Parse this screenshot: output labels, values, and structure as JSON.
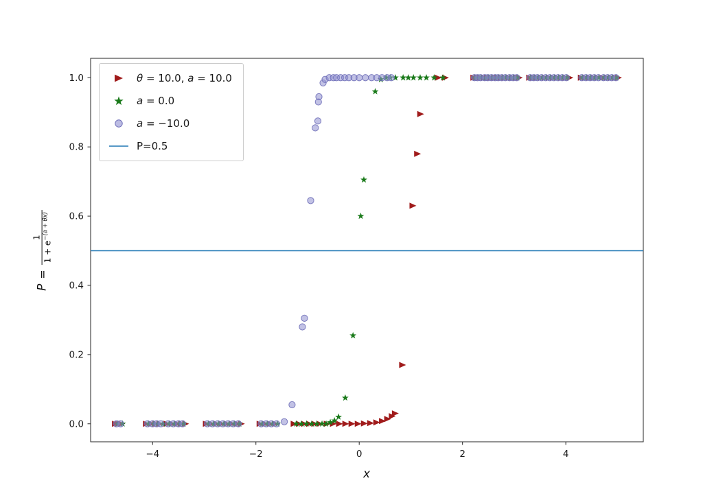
{
  "figure": {
    "background": "#ffffff",
    "xlabel": "x",
    "ylabel": {
      "var": "P",
      "eq": "=",
      "numerator": "1",
      "den_base": "1 + e",
      "den_exp": "−(a + θx)"
    }
  },
  "legend": {
    "entries": [
      {
        "marker": "triangle-right",
        "color": "#a01b1b",
        "segments": [
          {
            "text": "θ",
            "italic": true
          },
          {
            "text": " = 10.0,  ",
            "italic": false
          },
          {
            "text": "a",
            "italic": true
          },
          {
            "text": " = 10.0",
            "italic": false
          }
        ]
      },
      {
        "marker": "star",
        "color": "#1a7a1a",
        "segments": [
          {
            "text": "a",
            "italic": true
          },
          {
            "text": " = 0.0",
            "italic": false
          }
        ]
      },
      {
        "marker": "circle",
        "color": "#8f8fd0",
        "edge": "#6f6fb8",
        "segments": [
          {
            "text": "a",
            "italic": true
          },
          {
            "text": " = −10.0",
            "italic": false
          }
        ]
      },
      {
        "marker": "line",
        "color": "#1f77b4",
        "segments": [
          {
            "text": "P=0.5",
            "italic": false
          }
        ]
      }
    ]
  },
  "chart_data": {
    "type": "scatter",
    "title": "",
    "xlabel": "x",
    "ylabel": "P = 1 / (1 + e^(−(a + θx)))",
    "xlim": [
      -5.2,
      5.5
    ],
    "ylim": [
      -0.052,
      1.056
    ],
    "x_ticks": [
      -4,
      -2,
      0,
      2,
      4
    ],
    "x_tick_labels": [
      "−4",
      "−2",
      "0",
      "2",
      "4"
    ],
    "y_ticks": [
      0.0,
      0.2,
      0.4,
      0.6,
      0.8,
      1.0
    ],
    "y_tick_labels": [
      "0.0",
      "0.2",
      "0.4",
      "0.6",
      "0.8",
      "1.0"
    ],
    "grid": false,
    "legend_position": "upper left",
    "hline": {
      "y": 0.5,
      "color": "#1f77b4",
      "width": 1.5,
      "label": "P=0.5"
    },
    "series": [
      {
        "name": "θ = 10.0, a = 10.0",
        "marker": "triangle-right",
        "color": "#a01b1b",
        "points": [
          [
            -4.72,
            0
          ],
          [
            -4.66,
            0
          ],
          [
            -4.6,
            0
          ],
          [
            -4.12,
            0
          ],
          [
            -4.02,
            0
          ],
          [
            -3.94,
            0
          ],
          [
            -3.86,
            0
          ],
          [
            -3.72,
            0
          ],
          [
            -3.62,
            0
          ],
          [
            -3.52,
            0
          ],
          [
            -3.44,
            0
          ],
          [
            -3.36,
            0
          ],
          [
            -2.96,
            0
          ],
          [
            -2.86,
            0
          ],
          [
            -2.76,
            0
          ],
          [
            -2.66,
            0
          ],
          [
            -2.56,
            0
          ],
          [
            -2.46,
            0
          ],
          [
            -2.36,
            0
          ],
          [
            -2.28,
            0
          ],
          [
            -1.92,
            0
          ],
          [
            -1.82,
            0
          ],
          [
            -1.72,
            0
          ],
          [
            -1.62,
            0
          ],
          [
            -1.26,
            0
          ],
          [
            -1.16,
            0
          ],
          [
            -1.06,
            0
          ],
          [
            -0.96,
            0
          ],
          [
            -0.86,
            0
          ],
          [
            -0.76,
            0
          ],
          [
            -0.62,
            0
          ],
          [
            -0.5,
            0
          ],
          [
            -0.38,
            0
          ],
          [
            -0.26,
            0
          ],
          [
            -0.14,
            0
          ],
          [
            -0.02,
            0
          ],
          [
            0.1,
            0.001
          ],
          [
            0.22,
            0.002
          ],
          [
            0.34,
            0.004
          ],
          [
            0.45,
            0.008
          ],
          [
            0.55,
            0.014
          ],
          [
            0.64,
            0.022
          ],
          [
            0.7,
            0.03
          ],
          [
            0.84,
            0.17
          ],
          [
            1.04,
            0.63
          ],
          [
            1.13,
            0.78
          ],
          [
            1.19,
            0.895
          ],
          [
            1.53,
            1.0
          ],
          [
            1.67,
            1.0
          ],
          [
            2.22,
            1
          ],
          [
            2.28,
            1
          ],
          [
            2.34,
            1
          ],
          [
            2.42,
            1
          ],
          [
            2.48,
            1
          ],
          [
            2.55,
            1
          ],
          [
            2.62,
            1
          ],
          [
            2.68,
            1
          ],
          [
            2.75,
            1
          ],
          [
            2.82,
            1
          ],
          [
            2.9,
            1
          ],
          [
            2.97,
            1
          ],
          [
            3.04,
            1
          ],
          [
            3.1,
            1
          ],
          [
            3.3,
            1
          ],
          [
            3.37,
            1
          ],
          [
            3.44,
            1
          ],
          [
            3.52,
            1
          ],
          [
            3.6,
            1
          ],
          [
            3.68,
            1
          ],
          [
            3.76,
            1
          ],
          [
            3.84,
            1
          ],
          [
            3.92,
            1
          ],
          [
            4.0,
            1
          ],
          [
            4.08,
            1
          ],
          [
            4.3,
            1
          ],
          [
            4.38,
            1
          ],
          [
            4.46,
            1
          ],
          [
            4.54,
            1
          ],
          [
            4.62,
            1
          ],
          [
            4.72,
            1
          ],
          [
            4.8,
            1
          ],
          [
            4.88,
            1
          ],
          [
            4.96,
            1
          ],
          [
            5.02,
            1
          ]
        ]
      },
      {
        "name": "a = 0.0",
        "marker": "star",
        "color": "#1a7a1a",
        "points": [
          [
            -4.68,
            0
          ],
          [
            -4.58,
            0
          ],
          [
            -4.08,
            0
          ],
          [
            -3.98,
            0
          ],
          [
            -3.9,
            0
          ],
          [
            -3.8,
            0
          ],
          [
            -3.68,
            0
          ],
          [
            -3.58,
            0
          ],
          [
            -3.48,
            0
          ],
          [
            -3.4,
            0
          ],
          [
            -2.92,
            0
          ],
          [
            -2.82,
            0
          ],
          [
            -2.72,
            0
          ],
          [
            -2.62,
            0
          ],
          [
            -2.52,
            0
          ],
          [
            -2.42,
            0
          ],
          [
            -2.32,
            0
          ],
          [
            -1.88,
            0
          ],
          [
            -1.78,
            0
          ],
          [
            -1.68,
            0
          ],
          [
            -1.58,
            0
          ],
          [
            -1.22,
            0
          ],
          [
            -1.12,
            0
          ],
          [
            -1.02,
            0
          ],
          [
            -0.92,
            0
          ],
          [
            -0.82,
            0
          ],
          [
            -0.72,
            0
          ],
          [
            -0.64,
            0
          ],
          [
            -0.56,
            0.004
          ],
          [
            -0.48,
            0.009
          ],
          [
            -0.4,
            0.02
          ],
          [
            -0.27,
            0.075
          ],
          [
            -0.12,
            0.255
          ],
          [
            0.03,
            0.6
          ],
          [
            0.09,
            0.705
          ],
          [
            0.31,
            0.96
          ],
          [
            0.42,
            0.995
          ],
          [
            0.52,
            1
          ],
          [
            0.6,
            1
          ],
          [
            0.7,
            1
          ],
          [
            0.85,
            1
          ],
          [
            0.95,
            1
          ],
          [
            1.05,
            1
          ],
          [
            1.18,
            1
          ],
          [
            1.3,
            1
          ],
          [
            1.45,
            1
          ],
          [
            1.62,
            1
          ],
          [
            2.24,
            1
          ],
          [
            2.3,
            1
          ],
          [
            2.36,
            1
          ],
          [
            2.44,
            1
          ],
          [
            2.5,
            1
          ],
          [
            2.57,
            1
          ],
          [
            2.64,
            1
          ],
          [
            2.7,
            1
          ],
          [
            2.77,
            1
          ],
          [
            2.84,
            1
          ],
          [
            2.92,
            1
          ],
          [
            2.99,
            1
          ],
          [
            3.06,
            1
          ],
          [
            3.32,
            1
          ],
          [
            3.39,
            1
          ],
          [
            3.46,
            1
          ],
          [
            3.54,
            1
          ],
          [
            3.62,
            1
          ],
          [
            3.7,
            1
          ],
          [
            3.78,
            1
          ],
          [
            3.86,
            1
          ],
          [
            3.94,
            1
          ],
          [
            4.02,
            1
          ],
          [
            4.32,
            1
          ],
          [
            4.4,
            1
          ],
          [
            4.48,
            1
          ],
          [
            4.56,
            1
          ],
          [
            4.64,
            1
          ],
          [
            4.74,
            1
          ],
          [
            4.82,
            1
          ],
          [
            4.9,
            1
          ],
          [
            4.98,
            1
          ]
        ]
      },
      {
        "name": "a = −10.0",
        "marker": "circle",
        "color": "#8f8fd0",
        "edge": "#6f6fb8",
        "opacity": 0.55,
        "points": [
          [
            -4.7,
            0
          ],
          [
            -4.62,
            0
          ],
          [
            -4.1,
            0
          ],
          [
            -4.0,
            0
          ],
          [
            -3.92,
            0
          ],
          [
            -3.84,
            0
          ],
          [
            -3.7,
            0
          ],
          [
            -3.6,
            0
          ],
          [
            -3.5,
            0
          ],
          [
            -3.42,
            0
          ],
          [
            -2.94,
            0
          ],
          [
            -2.84,
            0
          ],
          [
            -2.74,
            0
          ],
          [
            -2.64,
            0
          ],
          [
            -2.54,
            0
          ],
          [
            -2.44,
            0
          ],
          [
            -2.34,
            0
          ],
          [
            -1.9,
            0
          ],
          [
            -1.8,
            0
          ],
          [
            -1.7,
            0
          ],
          [
            -1.6,
            0
          ],
          [
            -1.45,
            0.006
          ],
          [
            -1.3,
            0.055
          ],
          [
            -1.1,
            0.28
          ],
          [
            -1.06,
            0.305
          ],
          [
            -0.94,
            0.645
          ],
          [
            -0.85,
            0.855
          ],
          [
            -0.8,
            0.875
          ],
          [
            -0.79,
            0.93
          ],
          [
            -0.78,
            0.945
          ],
          [
            -0.7,
            0.985
          ],
          [
            -0.66,
            0.995
          ],
          [
            -0.58,
            1
          ],
          [
            -0.5,
            1
          ],
          [
            -0.44,
            1
          ],
          [
            -0.36,
            1
          ],
          [
            -0.28,
            1
          ],
          [
            -0.2,
            1
          ],
          [
            -0.1,
            1
          ],
          [
            0.0,
            1
          ],
          [
            0.12,
            1
          ],
          [
            0.24,
            1
          ],
          [
            0.34,
            1
          ],
          [
            0.44,
            1
          ],
          [
            0.54,
            1
          ],
          [
            0.62,
            1
          ],
          [
            2.23,
            1
          ],
          [
            2.29,
            1
          ],
          [
            2.35,
            1
          ],
          [
            2.43,
            1
          ],
          [
            2.49,
            1
          ],
          [
            2.56,
            1
          ],
          [
            2.63,
            1
          ],
          [
            2.69,
            1
          ],
          [
            2.76,
            1
          ],
          [
            2.83,
            1
          ],
          [
            2.91,
            1
          ],
          [
            2.98,
            1
          ],
          [
            3.05,
            1
          ],
          [
            3.31,
            1
          ],
          [
            3.38,
            1
          ],
          [
            3.45,
            1
          ],
          [
            3.53,
            1
          ],
          [
            3.61,
            1
          ],
          [
            3.69,
            1
          ],
          [
            3.77,
            1
          ],
          [
            3.85,
            1
          ],
          [
            3.93,
            1
          ],
          [
            4.01,
            1
          ],
          [
            4.31,
            1
          ],
          [
            4.39,
            1
          ],
          [
            4.47,
            1
          ],
          [
            4.55,
            1
          ],
          [
            4.63,
            1
          ],
          [
            4.73,
            1
          ],
          [
            4.81,
            1
          ],
          [
            4.89,
            1
          ],
          [
            4.97,
            1
          ]
        ]
      }
    ]
  }
}
